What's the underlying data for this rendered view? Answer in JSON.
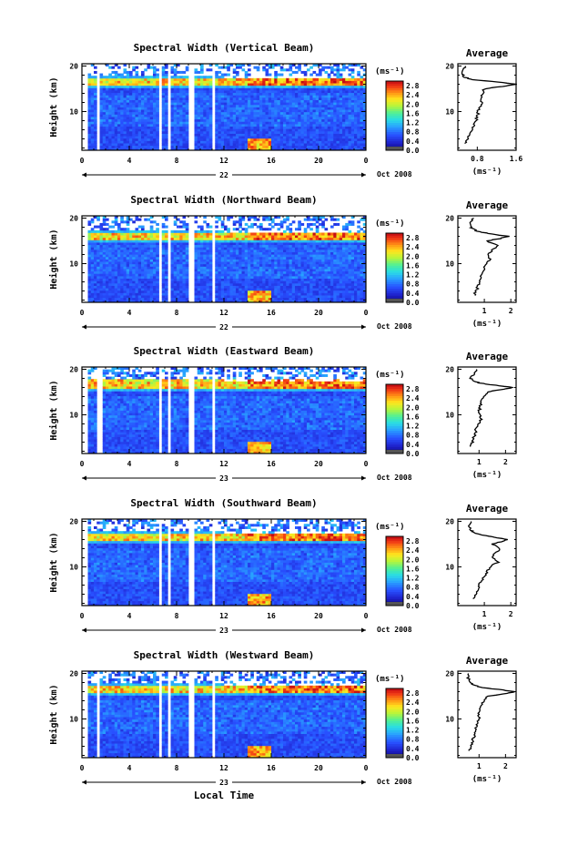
{
  "chart_data": [
    {
      "type": "heatmap",
      "title": "Spectral Width (Vertical Beam)",
      "ylabel": "Height (km)",
      "ylim": [
        1.5,
        20.5
      ],
      "y_ticks": [
        "20",
        "10"
      ],
      "x_ticks": [
        "0",
        "4",
        "8",
        "12",
        "16",
        "20",
        "0"
      ],
      "xlim": [
        0,
        24
      ],
      "date_label": "22",
      "month_label": "Oct 2008",
      "colorbar": {
        "unit": "(ms⁻¹)",
        "ticks": [
          "2.8",
          "2.4",
          "2.0",
          "1.6",
          "1.2",
          "0.8",
          "0.4",
          "0.0"
        ],
        "range": [
          0,
          3.0
        ]
      },
      "tropopause_km": 16.5,
      "gaps": [
        [
          1.2,
          1.6
        ],
        [
          6.4,
          6.8
        ],
        [
          7.2,
          7.4
        ],
        [
          8.9,
          9.6
        ],
        [
          10.9,
          11.2
        ]
      ],
      "average_profile": {
        "title": "Average",
        "xlabel": "(ms⁻¹)",
        "x_ticks": [
          "0.8",
          "1.6"
        ],
        "xlim": [
          0.4,
          1.6
        ],
        "heights": [
          3,
          4,
          5,
          6,
          7,
          8,
          9,
          10,
          11,
          12,
          13,
          14,
          15,
          15.5,
          16,
          16.5,
          17,
          17.5,
          18,
          19,
          20
        ],
        "values": [
          0.55,
          0.6,
          0.62,
          0.7,
          0.72,
          0.78,
          0.8,
          0.82,
          0.85,
          0.9,
          0.88,
          0.9,
          0.95,
          1.3,
          1.6,
          1.2,
          0.7,
          0.55,
          0.5,
          0.5,
          0.55
        ]
      }
    },
    {
      "type": "heatmap",
      "title": "Spectral Width (Northward Beam)",
      "ylabel": "Height (km)",
      "ylim": [
        1.5,
        20.5
      ],
      "y_ticks": [
        "20",
        "10"
      ],
      "x_ticks": [
        "0",
        "4",
        "8",
        "12",
        "16",
        "20",
        "0"
      ],
      "xlim": [
        0,
        24
      ],
      "date_label": "22",
      "month_label": "Oct 2008",
      "colorbar": {
        "unit": "(ms⁻¹)",
        "ticks": [
          "2.8",
          "2.4",
          "2.0",
          "1.6",
          "1.2",
          "0.8",
          "0.4",
          "0.0"
        ],
        "range": [
          0,
          3.0
        ]
      },
      "tropopause_km": 16.2,
      "gaps": [
        [
          6.4,
          6.8
        ],
        [
          7.2,
          7.4
        ],
        [
          8.9,
          9.6
        ],
        [
          10.9,
          11.2
        ]
      ],
      "average_profile": {
        "title": "Average",
        "xlabel": "(ms⁻¹)",
        "x_ticks": [
          "1",
          "2"
        ],
        "xlim": [
          0,
          2.2
        ],
        "heights": [
          3,
          4,
          5,
          6,
          7,
          8,
          9,
          10,
          11,
          12,
          13,
          14,
          15,
          15.5,
          16,
          16.5,
          17,
          17.5,
          18,
          19,
          20
        ],
        "values": [
          0.6,
          0.7,
          0.75,
          0.8,
          0.85,
          0.9,
          1.0,
          1.1,
          1.2,
          1.1,
          1.3,
          1.5,
          1.1,
          1.6,
          1.9,
          1.3,
          0.8,
          0.6,
          0.5,
          0.5,
          0.6
        ]
      }
    },
    {
      "type": "heatmap",
      "title": "Spectral Width (Eastward Beam)",
      "ylabel": "Height (km)",
      "ylim": [
        1.5,
        20.5
      ],
      "y_ticks": [
        "20",
        "10"
      ],
      "x_ticks": [
        "0",
        "4",
        "8",
        "12",
        "16",
        "20",
        "0"
      ],
      "xlim": [
        0,
        24
      ],
      "date_label": "23",
      "month_label": "Oct 2008",
      "colorbar": {
        "unit": "(ms⁻¹)",
        "ticks": [
          "2.8",
          "2.4",
          "2.0",
          "1.6",
          "1.2",
          "0.8",
          "0.4",
          "0.0"
        ],
        "range": [
          0,
          3.0
        ]
      },
      "tropopause_km": 16.8,
      "gaps": [
        [
          1.2,
          1.7
        ],
        [
          6.4,
          6.8
        ],
        [
          7.2,
          7.4
        ],
        [
          8.9,
          9.6
        ],
        [
          10.9,
          11.2
        ]
      ],
      "average_profile": {
        "title": "Average",
        "xlabel": "(ms⁻¹)",
        "x_ticks": [
          "1",
          "2"
        ],
        "xlim": [
          0.2,
          2.4
        ],
        "heights": [
          3,
          4,
          5,
          6,
          7,
          8,
          9,
          10,
          11,
          12,
          13,
          14,
          15,
          15.5,
          16,
          16.5,
          17,
          17.5,
          18,
          19,
          20
        ],
        "values": [
          0.7,
          0.75,
          0.8,
          0.85,
          0.9,
          1.0,
          1.1,
          1.0,
          1.0,
          1.05,
          1.1,
          1.2,
          1.3,
          1.8,
          2.3,
          1.6,
          1.0,
          0.8,
          0.7,
          0.8,
          0.9
        ]
      }
    },
    {
      "type": "heatmap",
      "title": "Spectral Width (Southward Beam)",
      "ylabel": "Height (km)",
      "ylim": [
        1.5,
        20.5
      ],
      "y_ticks": [
        "20",
        "10"
      ],
      "x_ticks": [
        "0",
        "4",
        "8",
        "12",
        "16",
        "20",
        "0"
      ],
      "xlim": [
        0,
        24
      ],
      "date_label": "23",
      "month_label": "Oct 2008",
      "colorbar": {
        "unit": "(ms⁻¹)",
        "ticks": [
          "2.8",
          "2.4",
          "2.0",
          "1.6",
          "1.2",
          "0.8",
          "0.4",
          "0.0"
        ],
        "range": [
          0,
          3.0
        ]
      },
      "tropopause_km": 16.5,
      "gaps": [
        [
          6.4,
          6.8
        ],
        [
          7.2,
          7.4
        ],
        [
          8.9,
          9.6
        ],
        [
          10.9,
          11.2
        ]
      ],
      "average_profile": {
        "title": "Average",
        "xlabel": "(ms⁻¹)",
        "x_ticks": [
          "1",
          "2"
        ],
        "xlim": [
          0,
          2.2
        ],
        "heights": [
          3,
          4,
          5,
          6,
          7,
          8,
          9,
          10,
          11,
          12,
          13,
          14,
          15,
          15.5,
          16,
          16.5,
          17,
          17.5,
          18,
          19,
          20
        ],
        "values": [
          0.6,
          0.7,
          0.75,
          0.8,
          0.9,
          1.0,
          1.1,
          1.2,
          1.5,
          1.3,
          1.4,
          1.6,
          1.3,
          1.6,
          1.9,
          1.4,
          0.9,
          0.6,
          0.5,
          0.4,
          0.5
        ]
      }
    },
    {
      "type": "heatmap",
      "title": "Spectral Width (Westward Beam)",
      "ylabel": "Height (km)",
      "ylim": [
        1.5,
        20.5
      ],
      "y_ticks": [
        "20",
        "10"
      ],
      "x_ticks": [
        "0",
        "4",
        "8",
        "12",
        "16",
        "20",
        "0"
      ],
      "xlim": [
        0,
        24
      ],
      "date_label": "23",
      "month_label": "Oct 2008",
      "xlabel": "Local Time",
      "colorbar": {
        "unit": "(ms⁻¹)",
        "ticks": [
          "2.8",
          "2.4",
          "2.0",
          "1.6",
          "1.2",
          "0.8",
          "0.4",
          "0.0"
        ],
        "range": [
          0,
          3.0
        ]
      },
      "tropopause_km": 16.6,
      "gaps": [
        [
          1.2,
          1.6
        ],
        [
          6.4,
          6.8
        ],
        [
          7.2,
          7.4
        ],
        [
          8.9,
          9.6
        ],
        [
          10.9,
          11.2
        ]
      ],
      "average_profile": {
        "title": "Average",
        "xlabel": "(ms⁻¹)",
        "x_ticks": [
          "1",
          "2"
        ],
        "xlim": [
          0.2,
          2.4
        ],
        "heights": [
          3,
          4,
          5,
          6,
          7,
          8,
          9,
          10,
          11,
          12,
          13,
          14,
          15,
          15.5,
          16,
          16.5,
          17,
          17.5,
          18,
          19,
          20
        ],
        "values": [
          0.65,
          0.7,
          0.75,
          0.8,
          0.85,
          0.9,
          0.95,
          1.0,
          1.0,
          1.05,
          1.1,
          1.2,
          1.3,
          1.9,
          2.4,
          1.7,
          1.0,
          0.8,
          0.7,
          0.6,
          0.6
        ]
      }
    }
  ]
}
